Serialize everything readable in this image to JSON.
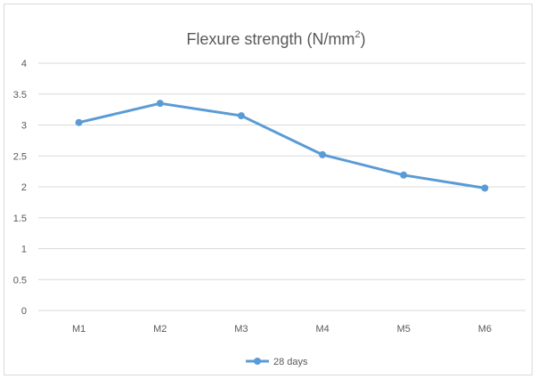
{
  "chart_data": {
    "type": "line",
    "title": "Flexure strength (N/mm",
    "title_superscript": "2",
    "title_suffix": ")",
    "xlabel": "",
    "ylabel": "",
    "categories": [
      "M1",
      "M2",
      "M3",
      "M4",
      "M5",
      "M6"
    ],
    "series": [
      {
        "name": "28 days",
        "values": [
          3.04,
          3.35,
          3.15,
          2.52,
          2.19,
          1.98
        ],
        "color": "#5b9bd5"
      }
    ],
    "ylim": [
      0,
      4
    ],
    "yticks": [
      "0",
      "0.5",
      "1",
      "1.5",
      "2",
      "2.5",
      "3",
      "3.5",
      "4"
    ],
    "grid": true,
    "legend_position": "bottom"
  }
}
